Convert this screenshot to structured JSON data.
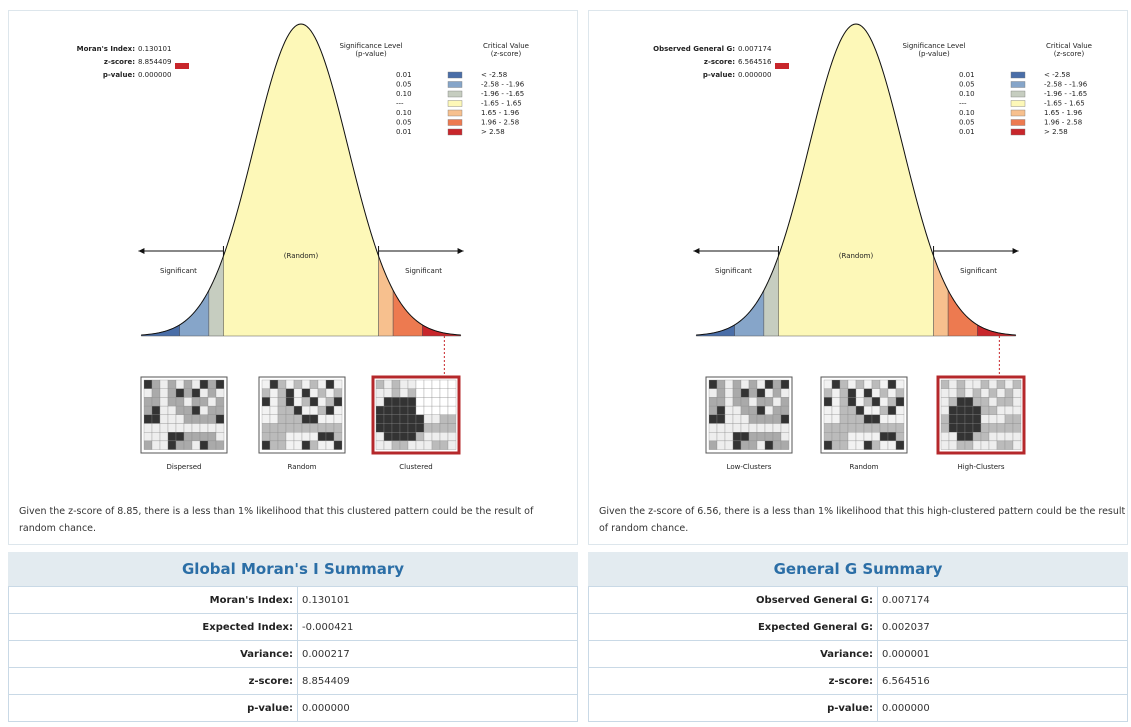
{
  "legend": {
    "significance_header": [
      "Significance Level",
      "(p-value)"
    ],
    "critical_header": [
      "Critical Value",
      "(z-score)"
    ],
    "rows": [
      {
        "p": "0.01",
        "z": "< -2.58",
        "color": "#4a6ea8"
      },
      {
        "p": "0.05",
        "z": "-2.58 - -1.96",
        "color": "#86a5c9"
      },
      {
        "p": "0.10",
        "z": "-1.96 - -1.65",
        "color": "#c6cdc0"
      },
      {
        "p": "---",
        "z": "-1.65 - 1.65",
        "color": "#fdf8b8"
      },
      {
        "p": "0.10",
        "z": "1.65 - 1.96",
        "color": "#f7c08e"
      },
      {
        "p": "0.05",
        "z": "1.96 - 2.58",
        "color": "#ed7a50"
      },
      {
        "p": "0.01",
        "z": "> 2.58",
        "color": "#c8262b"
      }
    ]
  },
  "panels": [
    {
      "stats": [
        {
          "label": "Moran's Index:",
          "value": "0.130101"
        },
        {
          "label": "z-score:",
          "value": "8.854409"
        },
        {
          "label": "p-value:",
          "value": "0.000000"
        }
      ],
      "random_label": "(Random)",
      "significant_labels": [
        "Significant",
        "Significant"
      ],
      "maps": [
        "Dispersed",
        "Random",
        "Clustered"
      ],
      "caption": "Given the z-score of 8.85, there is a less than 1% likelihood that this clustered pattern could be the result of random chance.",
      "summary": {
        "title": "Global Moran's I Summary",
        "rows": [
          [
            "Moran's Index:",
            "0.130101"
          ],
          [
            "Expected Index:",
            "-0.000421"
          ],
          [
            "Variance:",
            "0.000217"
          ],
          [
            "z-score:",
            "8.854409"
          ],
          [
            "p-value:",
            "0.000000"
          ]
        ]
      }
    },
    {
      "stats": [
        {
          "label": "Observed General G:",
          "value": "0.007174"
        },
        {
          "label": "z-score:",
          "value": "6.564516"
        },
        {
          "label": "p-value:",
          "value": "0.000000"
        }
      ],
      "random_label": "(Random)",
      "significant_labels": [
        "Significant",
        "Significant"
      ],
      "maps": [
        "Low-Clusters",
        "Random",
        "High-Clusters"
      ],
      "caption": "Given the z-score of 6.56, there is a less than 1% likelihood that this high-clustered pattern could be the result of random chance.",
      "summary": {
        "title": "General G Summary",
        "rows": [
          [
            "Observed General G:",
            "0.007174"
          ],
          [
            "Expected General G:",
            "0.002037"
          ],
          [
            "Variance:",
            "0.000001"
          ],
          [
            "z-score:",
            "6.564516"
          ],
          [
            "p-value:",
            "0.000000"
          ]
        ]
      }
    }
  ]
}
